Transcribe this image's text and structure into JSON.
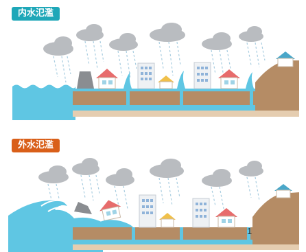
{
  "top": {
    "label": "内水氾濫",
    "color": "#1ea7b8"
  },
  "bottom": {
    "label": "外水氾濫",
    "color": "#d95f19",
    "marker": "1"
  },
  "icons": [
    "cloud-icon",
    "rain-icon",
    "house-icon",
    "building-icon",
    "tree-icon",
    "dam-icon",
    "wave-icon",
    "hill-house-icon"
  ]
}
